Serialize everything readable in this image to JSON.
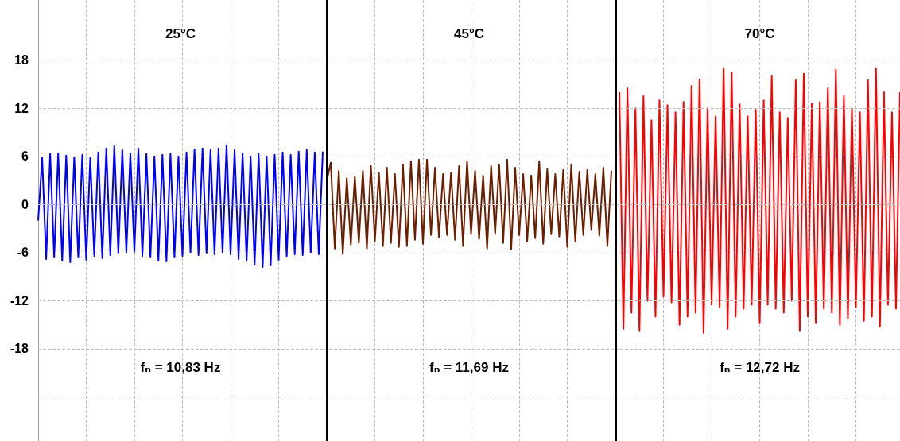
{
  "chart_data": {
    "type": "line",
    "annotations": [
      "25°C",
      "45°C",
      "70°C",
      "fₙ = 10,83 Hz",
      "fₙ = 11,69 Hz",
      "fₙ = 12,72 Hz"
    ],
    "categories": [
      null,
      null,
      null,
      null,
      null,
      null,
      null,
      null,
      null,
      null,
      null,
      null,
      null,
      null,
      null,
      null,
      null,
      null,
      null,
      null,
      null,
      null,
      null,
      null,
      null,
      null,
      null,
      null,
      null,
      null,
      null,
      null,
      null,
      null,
      null,
      null,
      null,
      null,
      null,
      null,
      null,
      null,
      null,
      null,
      null,
      null,
      null,
      null,
      null,
      null,
      null,
      null,
      null,
      null,
      null,
      null,
      null,
      null,
      null,
      null,
      null,
      null,
      null,
      null,
      null,
      null,
      null,
      null,
      null,
      null,
      null,
      null,
      null,
      null,
      null,
      null,
      null,
      null,
      null,
      null,
      null,
      null,
      null,
      null,
      null,
      null,
      null,
      null,
      null,
      null,
      null,
      null,
      null,
      null,
      null,
      null,
      null,
      null,
      null,
      null,
      null,
      null,
      null,
      null,
      null,
      null,
      null,
      null,
      null,
      null,
      null,
      null,
      null,
      null,
      null,
      null,
      null,
      null,
      null,
      null,
      null,
      null,
      null,
      null,
      null,
      null,
      null,
      null,
      null,
      null,
      null,
      null,
      null,
      null,
      null,
      null,
      null,
      null,
      null,
      null,
      null,
      null,
      null,
      null,
      null,
      null,
      null,
      null,
      null,
      null,
      null,
      null,
      null,
      null,
      null,
      null,
      null,
      null,
      null,
      null,
      null,
      null,
      null,
      null,
      null,
      null,
      null,
      null,
      null,
      null,
      null,
      null,
      null,
      null,
      null,
      null,
      null,
      null,
      null,
      null,
      null,
      null,
      null,
      null,
      null,
      null,
      null,
      null,
      null,
      null,
      null,
      null,
      null,
      null,
      null,
      null,
      null,
      null,
      null,
      null,
      null,
      null,
      null,
      null,
      null,
      null,
      null,
      null,
      null,
      null,
      null,
      null,
      null,
      null,
      null,
      null
    ],
    "series": [
      {
        "color": "#0000ff",
        "values": [
          -2,
          5.8,
          -6.8,
          6.3,
          -6.6,
          6.4,
          -7.0,
          6.1,
          -7.2,
          5.9,
          -6.6,
          6.2,
          -6.9,
          5.8,
          -6.4,
          6.5,
          -6.7,
          7.0,
          -6.3,
          7.3,
          -6.1,
          6.8,
          -6.0,
          6.4,
          -5.9,
          7.0,
          -6.4,
          6.3,
          -6.6,
          6.0,
          -7.0,
          6.2,
          -7.1,
          6.3,
          -6.6,
          6.0,
          -6.4,
          6.5,
          -6.0,
          6.9,
          -6.3,
          7.0,
          -6.1,
          6.8,
          -6.2,
          7.0,
          -6.0,
          7.4,
          -6.2,
          6.8,
          -6.8,
          6.4,
          -7.0,
          6.0,
          -7.5,
          6.3,
          -7.8,
          6.0,
          -7.6,
          6.2,
          -6.9,
          6.5,
          -6.5,
          6.2,
          -6.2,
          6.6,
          -6.3,
          6.8,
          -6.0,
          6.5,
          -6.2,
          6.6,
          null,
          null,
          null,
          null,
          null,
          null,
          null,
          null,
          null,
          null,
          null,
          null,
          null,
          null,
          null,
          null,
          null,
          null,
          null,
          null,
          null,
          null,
          null,
          null,
          null,
          null,
          null,
          null,
          null,
          null,
          null,
          null,
          null,
          null,
          null,
          null,
          null,
          null,
          null,
          null,
          null,
          null,
          null,
          null,
          null,
          null,
          null,
          null,
          null,
          null,
          null,
          null,
          null,
          null,
          null,
          null,
          null,
          null,
          null,
          null,
          null,
          null,
          null,
          null,
          null,
          null,
          null,
          null,
          null,
          null,
          null,
          null,
          null,
          null,
          null,
          null,
          null,
          null,
          null,
          null,
          null,
          null,
          null,
          null,
          null,
          null,
          null,
          null,
          null,
          null,
          null,
          null,
          null,
          null,
          null,
          null,
          null,
          null,
          null,
          null,
          null,
          null,
          null,
          null,
          null,
          null,
          null,
          null,
          null,
          null,
          null,
          null,
          null,
          null,
          null,
          null,
          null,
          null,
          null,
          null,
          null,
          null,
          null,
          null,
          null,
          null,
          null,
          null,
          null,
          null,
          null,
          null,
          null,
          null,
          null,
          null,
          null,
          null,
          null,
          null,
          null,
          null,
          null,
          null
        ]
      },
      {
        "color": "#6e1e00",
        "values": [
          null,
          null,
          null,
          null,
          null,
          null,
          null,
          null,
          null,
          null,
          null,
          null,
          null,
          null,
          null,
          null,
          null,
          null,
          null,
          null,
          null,
          null,
          null,
          null,
          null,
          null,
          null,
          null,
          null,
          null,
          null,
          null,
          null,
          null,
          null,
          null,
          null,
          null,
          null,
          null,
          null,
          null,
          null,
          null,
          null,
          null,
          null,
          null,
          null,
          null,
          null,
          null,
          null,
          null,
          null,
          null,
          null,
          null,
          null,
          null,
          null,
          null,
          null,
          null,
          null,
          null,
          null,
          null,
          null,
          null,
          null,
          null,
          3,
          5.2,
          -5.5,
          4.2,
          -6.2,
          3.3,
          -5.0,
          3.5,
          -4.8,
          4.2,
          -5.5,
          4.8,
          -4.6,
          4.0,
          -5.2,
          4.6,
          -4.8,
          3.8,
          -5.3,
          5.0,
          -5.2,
          5.4,
          -4.4,
          5.6,
          -4.9,
          5.6,
          -3.8,
          4.6,
          -4.1,
          3.8,
          -3.8,
          4.0,
          -4.4,
          4.8,
          -5.2,
          5.4,
          -3.7,
          4.2,
          -4.3,
          3.6,
          -5.5,
          4.8,
          -3.7,
          5.0,
          -4.8,
          5.6,
          -5.6,
          4.6,
          -3.8,
          3.8,
          -4.6,
          3.6,
          -4.2,
          5.4,
          -4.9,
          4.4,
          -3.7,
          3.8,
          -4.0,
          4.3,
          -5.3,
          5.0,
          -4.6,
          4.1,
          -3.8,
          4.3,
          -3.2,
          3.8,
          -3.9,
          4.6,
          -5.2,
          4.2,
          null,
          null,
          null,
          null,
          null,
          null,
          null,
          null,
          null,
          null,
          null,
          null,
          null,
          null,
          null,
          null,
          null,
          null,
          null,
          null,
          null,
          null,
          null,
          null,
          null,
          null,
          null,
          null,
          null,
          null,
          null,
          null,
          null,
          null,
          null,
          null,
          null,
          null,
          null,
          null,
          null,
          null,
          null,
          null,
          null,
          null,
          null,
          null,
          null,
          null,
          null,
          null,
          null,
          null,
          null,
          null,
          null,
          null,
          null,
          null,
          null,
          null,
          null,
          null,
          null,
          null,
          null,
          null,
          null,
          null,
          null,
          null
        ]
      },
      {
        "color": "#ff0000",
        "values": [
          null,
          null,
          null,
          null,
          null,
          null,
          null,
          null,
          null,
          null,
          null,
          null,
          null,
          null,
          null,
          null,
          null,
          null,
          null,
          null,
          null,
          null,
          null,
          null,
          null,
          null,
          null,
          null,
          null,
          null,
          null,
          null,
          null,
          null,
          null,
          null,
          null,
          null,
          null,
          null,
          null,
          null,
          null,
          null,
          null,
          null,
          null,
          null,
          null,
          null,
          null,
          null,
          null,
          null,
          null,
          null,
          null,
          null,
          null,
          null,
          null,
          null,
          null,
          null,
          null,
          null,
          null,
          null,
          null,
          null,
          null,
          null,
          null,
          null,
          null,
          null,
          null,
          null,
          null,
          null,
          null,
          null,
          null,
          null,
          null,
          null,
          null,
          null,
          null,
          null,
          null,
          null,
          null,
          null,
          null,
          null,
          null,
          null,
          null,
          null,
          null,
          null,
          null,
          null,
          null,
          null,
          null,
          null,
          null,
          null,
          null,
          null,
          null,
          null,
          null,
          null,
          null,
          null,
          null,
          null,
          null,
          null,
          null,
          null,
          null,
          null,
          null,
          null,
          null,
          null,
          null,
          null,
          null,
          null,
          null,
          null,
          null,
          null,
          null,
          null,
          null,
          null,
          null,
          null,
          null,
          14.0,
          -15.5,
          14.5,
          -13.5,
          12.0,
          -15.8,
          13.5,
          -12.0,
          10.5,
          -14.0,
          13.0,
          -11.5,
          12.4,
          -12.2,
          11.5,
          -15.0,
          12.8,
          -14.0,
          14.8,
          -13.5,
          15.6,
          -16.0,
          12.0,
          -12.5,
          11.0,
          -12.8,
          17.0,
          -15.5,
          16.5,
          -14.0,
          12.5,
          -13.0,
          11.0,
          -12.5,
          11.8,
          -14.8,
          13.0,
          -12.5,
          16.0,
          -13.0,
          11.5,
          -13.5,
          10.8,
          -12.0,
          15.5,
          -15.8,
          16.3,
          -14.0,
          12.6,
          -14.8,
          12.8,
          -13.0,
          14.5,
          -13.5,
          16.8,
          -15.0,
          13.5,
          -14.2,
          12.0,
          -12.8,
          11.5,
          -14.5,
          15.5,
          -14.0,
          17.0,
          -15.2,
          14.0,
          -12.5,
          11.5,
          -13.0,
          14.0
        ]
      }
    ],
    "ylim": [
      -29.5,
      25.5
    ],
    "yticks": [
      {
        "value": -24,
        "label": null
      },
      -18,
      -12,
      -6,
      0,
      6,
      12,
      18
    ],
    "grid": true,
    "marker": "none",
    "tick_labels": "y"
  }
}
